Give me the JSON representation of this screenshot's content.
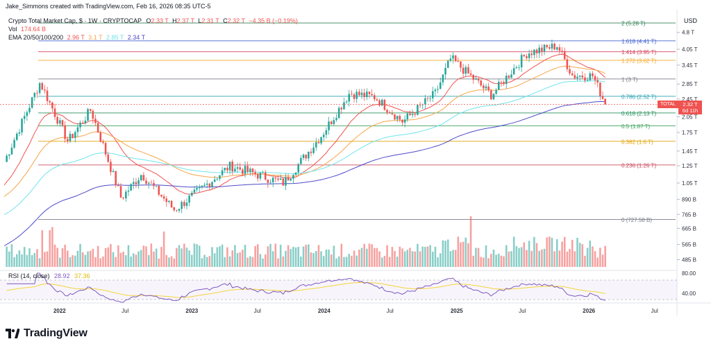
{
  "header": {
    "creator": "Jake_Simmons created with TradingView.com, Feb 16, 2026 08:35 UTC-5",
    "symbol": "Crypto Total Market Cap, $ · 1W · CRYPTOCAP",
    "ohlc": {
      "o_label": "O",
      "o": "2.33 T",
      "h_label": "H",
      "h": "2.37 T",
      "l_label": "L",
      "l": "2.31 T",
      "c_label": "C",
      "c": "2.32 T",
      "change": "−4.35 B (−0.19%)"
    },
    "vol_label": "Vol",
    "vol_value": "174.64 B",
    "ema_label": "EMA 20/50/100/200",
    "ema_values": [
      "2.96 T",
      "3.1 T",
      "2.85 T",
      "2.34 T"
    ]
  },
  "axis": {
    "currency": "USD",
    "price_ticks": [
      "4.8 T",
      "4.05 T",
      "3.45 T",
      "2.85 T",
      "2.45 T",
      "2.05 T",
      "1.75 T",
      "1.45 T",
      "1.25 T",
      "1.05 T",
      "890 B",
      "765 B",
      "665 B",
      "565 B",
      "485 B"
    ],
    "rsi_ticks": [
      "80.00",
      "40.00"
    ],
    "time_ticks": [
      "2022",
      "Jul",
      "2023",
      "Jul",
      "2024",
      "Jul",
      "2025",
      "Jul",
      "2026",
      "Jul"
    ]
  },
  "price_badge": {
    "label": "TOTAL",
    "value": "2.32 T",
    "countdown": "6d 11h"
  },
  "rsi_header": {
    "label": "RSI (14, close)",
    "v1": "28.92",
    "v2": "37.36"
  },
  "footer": {
    "brand": "TradingView"
  },
  "colors": {
    "up": "#26a69a",
    "down": "#ef5350",
    "ema20": "#ef5350",
    "ema50": "#f7a54a",
    "ema100": "#6fe3ec",
    "ema200": "#4b48c9",
    "rsi": "#7e57c2",
    "rsi_ma": "#f5d33a"
  },
  "chart_data": {
    "type": "candlestick",
    "title": "Crypto Total Market Cap, $ · 1W · CRYPTOCAP",
    "y_unit": "USD",
    "y_scale": "log",
    "fib_levels": [
      {
        "ratio": "2",
        "label": "2 (5.28 T)",
        "value": 5.28,
        "color": "#2e7d52"
      },
      {
        "ratio": "1.618",
        "label": "1.618 (4.41 T)",
        "value": 4.41,
        "color": "#3a5ccc"
      },
      {
        "ratio": "1.414",
        "label": "1.414 (3.95 T)",
        "value": 3.95,
        "color": "#d43f5a"
      },
      {
        "ratio": "1.272",
        "label": "1.272 (3.62 T)",
        "value": 3.62,
        "color": "#f5a623"
      },
      {
        "ratio": "1",
        "label": "1 (3 T)",
        "value": 3.0,
        "color": "#787b86"
      },
      {
        "ratio": "0.786",
        "label": "0.786 (2.52 T)",
        "value": 2.52,
        "color": "#26a0b0"
      },
      {
        "ratio": "0.618",
        "label": "0.618 (2.13 T)",
        "value": 2.13,
        "color": "#1e8c55"
      },
      {
        "ratio": "0.5",
        "label": "0.5 (1.87 T)",
        "value": 1.87,
        "color": "#3aa05a"
      },
      {
        "ratio": "0.382",
        "label": "0.382 (1.6 T)",
        "value": 1.6,
        "color": "#e0a000"
      },
      {
        "ratio": "0.236",
        "label": "0.236 (1.26 T)",
        "value": 1.26,
        "color": "#c8455a"
      },
      {
        "ratio": "0",
        "label": "0 (727.58 B)",
        "value": 0.72758,
        "color": "#787b86"
      }
    ],
    "price_path_keypoints": [
      {
        "date": "2021-08-01",
        "close": 1.3
      },
      {
        "date": "2021-11-08",
        "close": 2.9
      },
      {
        "date": "2022-01-24",
        "close": 1.6
      },
      {
        "date": "2022-03-28",
        "close": 2.2
      },
      {
        "date": "2022-06-20",
        "close": 0.9
      },
      {
        "date": "2022-08-15",
        "close": 1.15
      },
      {
        "date": "2022-11-14",
        "close": 0.8
      },
      {
        "date": "2023-04-17",
        "close": 1.25
      },
      {
        "date": "2023-09-11",
        "close": 1.05
      },
      {
        "date": "2023-12-25",
        "close": 1.7
      },
      {
        "date": "2024-03-11",
        "close": 2.6
      },
      {
        "date": "2024-05-20",
        "close": 2.5
      },
      {
        "date": "2024-08-05",
        "close": 1.95
      },
      {
        "date": "2024-11-04",
        "close": 2.6
      },
      {
        "date": "2024-12-16",
        "close": 3.7
      },
      {
        "date": "2025-04-07",
        "close": 2.55
      },
      {
        "date": "2025-07-14",
        "close": 3.9
      },
      {
        "date": "2025-10-06",
        "close": 4.2
      },
      {
        "date": "2025-11-17",
        "close": 3.1
      },
      {
        "date": "2026-01-12",
        "close": 3.1
      },
      {
        "date": "2026-02-16",
        "close": 2.32
      }
    ]
  }
}
